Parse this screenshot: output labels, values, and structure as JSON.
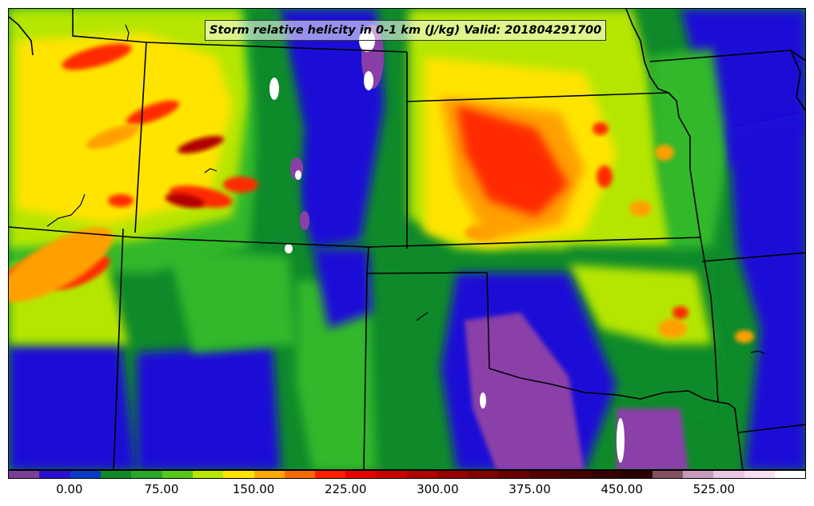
{
  "title": "Storm relative helicity in 0-1 km (J/kg) Valid: 201804291700",
  "colorbar": {
    "colors": [
      "#7b3f9a",
      "#2a10d0",
      "#0a3ac8",
      "#118a2a",
      "#2aa82a",
      "#55c81a",
      "#b8e600",
      "#ffe400",
      "#ffa800",
      "#ff6a00",
      "#ff1e00",
      "#e60000",
      "#c80000",
      "#b00000",
      "#980000",
      "#800000",
      "#6a0000",
      "#560000",
      "#440000",
      "#360000",
      "#2a0000",
      "#855060",
      "#c89aba",
      "#e9c6e3",
      "#f6def3",
      "#ffffff"
    ],
    "ticks": [
      "0.00",
      "75.00",
      "150.00",
      "225.00",
      "300.00",
      "375.00",
      "450.00",
      "525.00"
    ],
    "min": -50,
    "max": 600
  },
  "map_colors": {
    "purple": "#8a3fa8",
    "blue": "#1a10d6",
    "darkgreen": "#0f8a2a",
    "green": "#33b82b",
    "lime": "#b5e600",
    "yellow": "#ffe400",
    "orange": "#ffa000",
    "red": "#ff2a00",
    "darkred": "#b00000",
    "white": "#ffffff",
    "border": "#000000"
  }
}
